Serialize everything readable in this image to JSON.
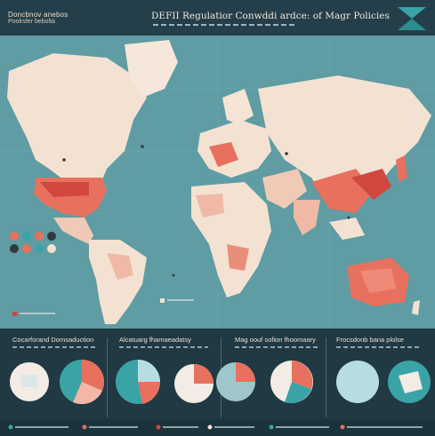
{
  "header": {
    "brand_line1": "Doncbnov anebos",
    "brand_line2": "Poolrsfer bebolta",
    "title": "DEFII Regulatior Conwddi ardce: of Magr Policies",
    "corner_icon": "hourglass-shape-icon"
  },
  "map": {
    "colors": {
      "ocean": "#5f9ca3",
      "land": "#f3e2d2",
      "land_light": "#f6d3c2",
      "highlight": "#e8705e",
      "highlight_dark": "#d2473f",
      "accent_teal": "#2f8d92"
    }
  },
  "sections": [
    {
      "title": "Cocarforand Domsaduction"
    },
    {
      "title": "Alcatuarg fhamaeadatsy"
    },
    {
      "title": "Mag oouf sofion fhoomaary"
    },
    {
      "title": "Frocsdonb bana plolse"
    }
  ]
}
